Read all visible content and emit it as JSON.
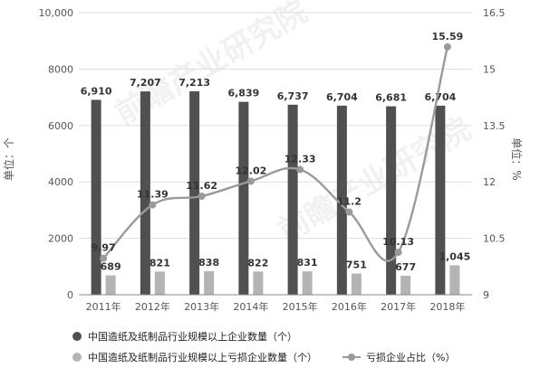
{
  "chart_data": {
    "type": "bar",
    "categories": [
      "2011年",
      "2012年",
      "2013年",
      "2014年",
      "2015年",
      "2016年",
      "2017年",
      "2018年"
    ],
    "series": [
      {
        "name": "中国造纸及纸制品行业规模以上企业数量（个）",
        "type": "bar",
        "axis": "left",
        "values": [
          6910,
          7207,
          7213,
          6839,
          6737,
          6704,
          6681,
          6704
        ],
        "labels": [
          "6,910",
          "7,207",
          "7,213",
          "6,839",
          "6,737",
          "6,704",
          "6,681",
          "6,704"
        ],
        "color": "#505050"
      },
      {
        "name": "中国造纸及纸制品行业规模以上亏损企业数量（个）",
        "type": "bar",
        "axis": "left",
        "values": [
          689,
          821,
          838,
          822,
          831,
          751,
          677,
          1045
        ],
        "labels": [
          "689",
          "821",
          "838",
          "822",
          "831",
          "751",
          "677",
          "1,045"
        ],
        "color": "#b4b4b4"
      },
      {
        "name": "亏损企业占比（%）",
        "type": "line",
        "axis": "right",
        "values": [
          9.97,
          11.39,
          11.62,
          12.02,
          12.33,
          11.2,
          10.13,
          15.59
        ],
        "labels": [
          "9.97",
          "11.39",
          "11.62",
          "12.02",
          "12.33",
          "11.2",
          "10.13",
          "15.59"
        ],
        "color": "#9a9a9a"
      }
    ],
    "ylabel_left": "单位：个",
    "ylabel_right": "单位：%",
    "ylim_left": [
      0,
      10000
    ],
    "yticks_left": [
      "0",
      "2000",
      "4000",
      "6000",
      "8000",
      "10,000"
    ],
    "ylim_right": [
      9,
      16.5
    ],
    "yticks_right": [
      "9",
      "10.5",
      "12",
      "13.5",
      "15",
      "16.5"
    ],
    "grid": true,
    "legend_position": "bottom"
  },
  "watermark": "前瞻产业研究院",
  "colors": {
    "grid": "#dddddd",
    "text": "#555555"
  }
}
